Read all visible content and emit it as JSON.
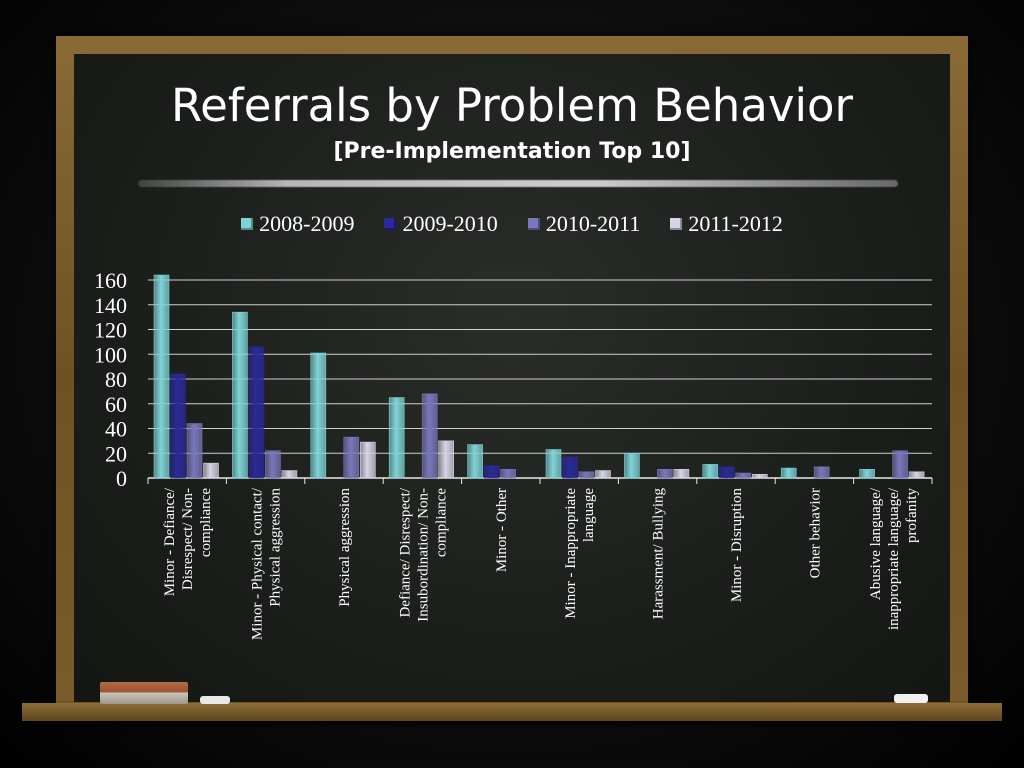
{
  "title": "Referrals by Problem Behavior",
  "subtitle": "[Pre-Implementation Top 10]",
  "chart_data": {
    "type": "bar",
    "title": "Referrals by Problem Behavior",
    "subtitle": "[Pre-Implementation Top 10]",
    "categories": [
      "Minor - Defiance/ Disrespect/ Non-compliance",
      "Minor - Physical contact/ Physical aggression",
      "Physical aggression",
      "Defiance/ Disrespect/ Insubordination/ Non-compliance",
      "Minor - Other",
      "Minor - Inappropriate language",
      "Harassment/ Bullying",
      "Minor - Disruption",
      "Other behavior",
      "Abusive language/ inappropriate language/ profanity"
    ],
    "category_lines": [
      [
        "Minor - Defiance/",
        "Disrespect/ Non-",
        "compliance"
      ],
      [
        "Minor - Physical contact/",
        "Physical aggression"
      ],
      [
        "Physical aggression"
      ],
      [
        "Defiance/ Disrespect/",
        "Insubordination/ Non-",
        "compliance"
      ],
      [
        "Minor - Other"
      ],
      [
        "Minor - Inappropriate",
        "language"
      ],
      [
        "Harassment/ Bullying"
      ],
      [
        "Minor - Disruption"
      ],
      [
        "Other behavior"
      ],
      [
        "Abusive language/",
        "inappropriate language/",
        "profanity"
      ]
    ],
    "series": [
      {
        "name": "2008-2009",
        "color": "#7fd3d6",
        "values": [
          164,
          134,
          101,
          65,
          27,
          23,
          20,
          11,
          8,
          7
        ]
      },
      {
        "name": "2009-2010",
        "color": "#2b2a9a",
        "values": [
          84,
          106,
          0,
          0,
          10,
          17,
          0,
          9,
          0,
          0
        ]
      },
      {
        "name": "2010-2011",
        "color": "#7a78bc",
        "values": [
          44,
          22,
          33,
          68,
          7,
          5,
          7,
          4,
          9,
          22
        ]
      },
      {
        "name": "2011-2012",
        "color": "#d6d4e6",
        "values": [
          12,
          6,
          29,
          30,
          0,
          6,
          7,
          3,
          0,
          5
        ]
      }
    ],
    "y_ticks": [
      0,
      20,
      40,
      60,
      80,
      100,
      120,
      140,
      160
    ],
    "ylim": [
      0,
      160
    ],
    "grid": true,
    "legend_position": "top"
  }
}
